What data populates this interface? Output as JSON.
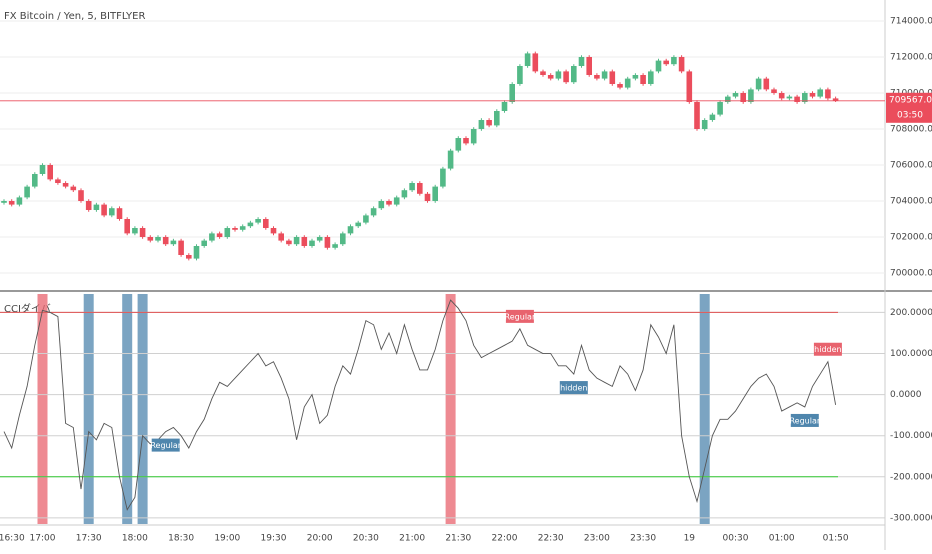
{
  "chart_data": [
    {
      "type": "candlestick",
      "title": "FX Bitcoin / Yen, 5, BITFLYER",
      "up_color": "#53b987",
      "down_color": "#eb4d5c",
      "ylim": [
        699500,
        714500
      ],
      "yticks": [
        {
          "value": 700000,
          "label": "700000.00"
        },
        {
          "value": 702000,
          "label": "702000.00"
        },
        {
          "value": 704000,
          "label": "704000.00"
        },
        {
          "value": 706000,
          "label": "706000.00"
        },
        {
          "value": 708000,
          "label": "708000.00"
        },
        {
          "value": 710000,
          "label": "710000.00"
        },
        {
          "value": 712000,
          "label": "712000.00"
        },
        {
          "value": 714000,
          "label": "714000.00"
        }
      ],
      "grid": true,
      "last_price_label": "709567.00",
      "countdown": "03:50",
      "last_color": "#eb4d5c",
      "open": [
        703900,
        704000,
        703800,
        704200,
        704800,
        705500,
        706000,
        705200,
        705000,
        704800,
        704600,
        704000,
        703500,
        703800,
        703200,
        703600,
        703000,
        702200,
        702500,
        702000,
        701800,
        702000,
        701600,
        701800,
        701000,
        700800,
        701500,
        701800,
        702200,
        702000,
        702500,
        702400,
        702600,
        702800,
        703000,
        702500,
        702200,
        701800,
        701600,
        702000,
        701500,
        701800,
        702000,
        701400,
        701600,
        702200,
        702600,
        702800,
        703200,
        703600,
        704000,
        703800,
        704200,
        704600,
        705000,
        704400,
        704000,
        704800,
        705800,
        706800,
        707500,
        707200,
        708000,
        708500,
        708200,
        709000,
        709500,
        710500,
        711500,
        712200,
        711200,
        711000,
        710800,
        711200,
        710600,
        711500,
        712000,
        711000,
        710800,
        711200,
        710500,
        710300,
        710800,
        711000,
        710500,
        711200,
        711800,
        711600,
        712000,
        711200,
        709500,
        708000,
        708500,
        708800,
        709500,
        709800,
        710000,
        709500,
        710200,
        710800,
        710200,
        710000,
        709700,
        709800,
        709500,
        710000,
        709800,
        710200,
        709700
      ],
      "high": [
        704100,
        704100,
        704300,
        704900,
        705600,
        706100,
        706100,
        705300,
        705100,
        704900,
        704700,
        704100,
        703900,
        703900,
        703700,
        703700,
        703100,
        702600,
        702600,
        702100,
        702100,
        702100,
        701900,
        701900,
        701100,
        701600,
        701900,
        702300,
        702300,
        702600,
        702600,
        702700,
        702900,
        703100,
        703100,
        702600,
        702300,
        701900,
        702100,
        702100,
        701900,
        702100,
        702100,
        701700,
        702300,
        702700,
        702900,
        703300,
        703700,
        704100,
        704100,
        704300,
        704700,
        705100,
        705100,
        704500,
        704900,
        705900,
        706900,
        707600,
        707600,
        708100,
        708600,
        708600,
        709100,
        709600,
        710600,
        711600,
        712300,
        712300,
        711300,
        711100,
        711300,
        711300,
        711600,
        712100,
        712100,
        711100,
        711300,
        711300,
        710600,
        710900,
        711100,
        711100,
        711300,
        711900,
        711900,
        712100,
        712100,
        711300,
        709600,
        708600,
        708900,
        709600,
        709900,
        710100,
        710100,
        710300,
        710900,
        710900,
        710300,
        710100,
        709900,
        709900,
        710100,
        710100,
        710300,
        710300,
        709800
      ],
      "low": [
        703800,
        703700,
        703700,
        704100,
        704700,
        705400,
        705100,
        704900,
        704700,
        704500,
        703900,
        703400,
        703400,
        703100,
        703100,
        702900,
        702100,
        702100,
        701900,
        701700,
        701700,
        701500,
        701500,
        700900,
        700700,
        700700,
        701400,
        701700,
        701900,
        701900,
        702300,
        702300,
        702500,
        702700,
        702400,
        702100,
        701700,
        701500,
        701500,
        701400,
        701400,
        701700,
        701300,
        701300,
        701500,
        702100,
        702500,
        702700,
        703100,
        703500,
        703700,
        703700,
        704100,
        704500,
        704300,
        703900,
        703900,
        704700,
        705700,
        706700,
        707100,
        707100,
        707900,
        708100,
        708100,
        708900,
        709400,
        710400,
        711400,
        711100,
        710900,
        710700,
        710700,
        710500,
        710500,
        711400,
        710900,
        710700,
        710700,
        710400,
        710200,
        710200,
        710700,
        710400,
        710400,
        711100,
        711500,
        711500,
        711100,
        709400,
        707900,
        707900,
        708400,
        708700,
        709400,
        709700,
        709400,
        709400,
        710100,
        710100,
        709900,
        709600,
        709600,
        709400,
        709400,
        709700,
        709700,
        709600,
        709500
      ],
      "close": [
        704000,
        703800,
        704200,
        704800,
        705500,
        706000,
        705200,
        705000,
        704800,
        704600,
        704000,
        703500,
        703800,
        703200,
        703600,
        703000,
        702200,
        702500,
        702000,
        701800,
        702000,
        701600,
        701800,
        701000,
        700800,
        701500,
        701800,
        702200,
        702000,
        702500,
        702400,
        702600,
        702800,
        703000,
        702500,
        702200,
        701800,
        701600,
        702000,
        701500,
        701800,
        702000,
        701400,
        701600,
        702200,
        702600,
        702800,
        703200,
        703600,
        704000,
        703800,
        704200,
        704600,
        705000,
        704400,
        704000,
        704800,
        705800,
        706800,
        707500,
        707200,
        708000,
        708500,
        708200,
        709000,
        709500,
        710500,
        711500,
        712200,
        711200,
        711000,
        710800,
        711200,
        710600,
        711500,
        712000,
        711000,
        710800,
        711200,
        710500,
        710300,
        710800,
        711000,
        710500,
        711200,
        711800,
        711600,
        712000,
        711200,
        709500,
        708000,
        708500,
        708800,
        709500,
        709800,
        710000,
        709500,
        710200,
        710800,
        710200,
        710000,
        709700,
        709800,
        709500,
        710000,
        709800,
        710200,
        709700,
        709567
      ]
    },
    {
      "type": "line",
      "title": "CCIダイバ",
      "color": "#555555",
      "ylim": [
        -310,
        240
      ],
      "yticks": [
        {
          "value": 200,
          "label": "200.0000"
        },
        {
          "value": 100,
          "label": "100.0000"
        },
        {
          "value": 0,
          "label": "0.0000"
        },
        {
          "value": -100,
          "label": "-100.0000"
        },
        {
          "value": -200,
          "label": "-200.0000"
        },
        {
          "value": -300,
          "label": "-300.0000"
        }
      ],
      "grid": true,
      "levels": [
        {
          "value": 200,
          "color": "#e05050"
        },
        {
          "value": -200,
          "color": "#33cc33"
        }
      ],
      "values": [
        -90,
        -130,
        -50,
        20,
        120,
        205,
        200,
        190,
        -70,
        -80,
        -230,
        -90,
        -110,
        -70,
        -80,
        -200,
        -280,
        -250,
        -100,
        -120,
        -110,
        -90,
        -80,
        -100,
        -130,
        -90,
        -60,
        -10,
        30,
        20,
        40,
        60,
        80,
        100,
        70,
        80,
        40,
        -10,
        -110,
        -30,
        0,
        -70,
        -50,
        20,
        70,
        50,
        110,
        180,
        170,
        110,
        150,
        100,
        170,
        110,
        60,
        60,
        110,
        180,
        230,
        210,
        180,
        120,
        90,
        100,
        110,
        120,
        130,
        160,
        120,
        110,
        100,
        100,
        70,
        70,
        50,
        120,
        60,
        40,
        30,
        20,
        70,
        50,
        10,
        60,
        170,
        140,
        100,
        170,
        -100,
        -200,
        -260,
        -180,
        -100,
        -60,
        -60,
        -40,
        -10,
        20,
        40,
        50,
        20,
        -40,
        -30,
        -20,
        -30,
        20,
        50,
        80,
        -25
      ],
      "bands": [
        {
          "index": 5,
          "color": "#e8636e"
        },
        {
          "index": 11,
          "color": "#4f86ad"
        },
        {
          "index": 16,
          "color": "#4f86ad"
        },
        {
          "index": 18,
          "color": "#4f86ad"
        },
        {
          "index": 58,
          "color": "#e8636e"
        },
        {
          "index": 91,
          "color": "#4f86ad"
        }
      ],
      "annotations": [
        {
          "index": 21,
          "text": "Regular",
          "color": "#4f86ad"
        },
        {
          "index": 67,
          "text": "Regular",
          "color": "#e8636e"
        },
        {
          "index": 74,
          "text": "hidden",
          "color": "#4f86ad"
        },
        {
          "index": 104,
          "text": "Regular",
          "color": "#4f86ad"
        },
        {
          "index": 107,
          "text": "hidden",
          "color": "#e8636e"
        }
      ],
      "categories": [
        null,
        "16:30",
        null,
        null,
        null,
        "17:00",
        null,
        null,
        null,
        null,
        null,
        "17:30",
        null,
        null,
        null,
        null,
        null,
        "18:00",
        null,
        null,
        null,
        null,
        null,
        "18:30",
        null,
        null,
        null,
        null,
        null,
        "19:00",
        null,
        null,
        null,
        null,
        null,
        "19:30",
        null,
        null,
        null,
        null,
        null,
        "20:00",
        null,
        null,
        null,
        null,
        null,
        "20:30",
        null,
        null,
        null,
        null,
        null,
        "21:00",
        null,
        null,
        null,
        null,
        null,
        "21:30",
        null,
        null,
        null,
        null,
        null,
        "22:00",
        null,
        null,
        null,
        null,
        null,
        "22:30",
        null,
        null,
        null,
        null,
        null,
        "23:00",
        null,
        null,
        null,
        null,
        null,
        "23:30",
        null,
        null,
        null,
        null,
        null,
        "19",
        null,
        null,
        null,
        null,
        null,
        "00:30",
        null,
        null,
        null,
        null,
        null,
        "01:00",
        null,
        null,
        null,
        null,
        null,
        null,
        "01:50"
      ]
    }
  ]
}
